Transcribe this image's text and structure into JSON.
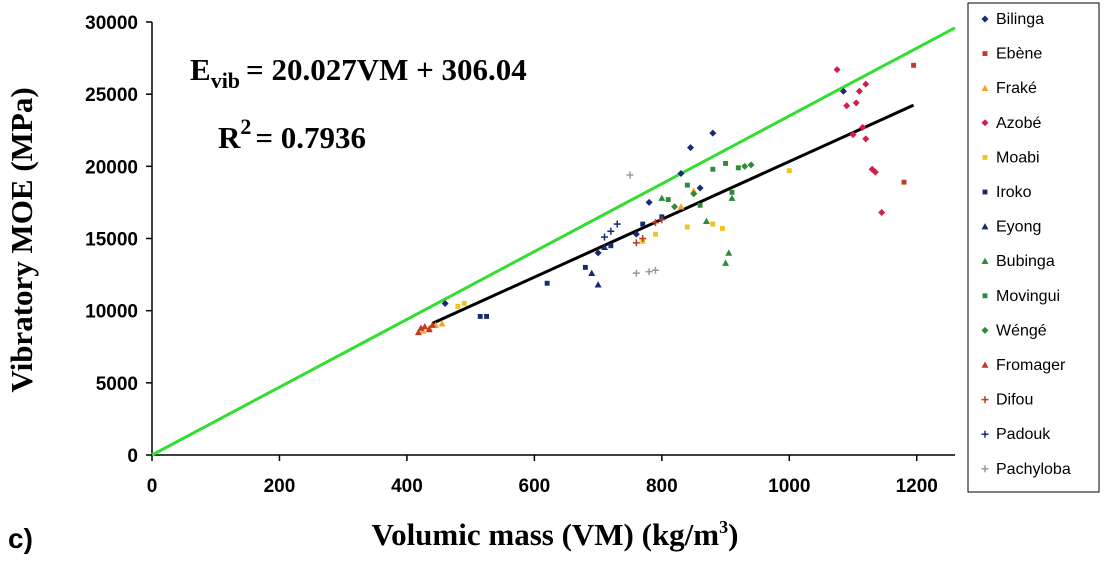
{
  "panel_label": "c)",
  "equation": {
    "lhs": "E",
    "lhs_sub": "vib",
    "rhs": "= 20.027VM + 306.04"
  },
  "r_squared": {
    "label": "R",
    "sup": "2",
    "value": "= 0.7936"
  },
  "colors": {
    "green_line": "#33dd33",
    "black_line": "#000000"
  },
  "chart_data": {
    "type": "scatter",
    "title": "",
    "xlabel": "Volumic mass (VM) (kg/m",
    "xlabel_sup": "3",
    "xlabel_end": ")",
    "ylabel": "Vibratory MOE (MPa)",
    "xlim": [
      0,
      1260
    ],
    "ylim": [
      0,
      30000
    ],
    "xticks": [
      "0",
      "200",
      "400",
      "600",
      "800",
      "1000",
      "1200"
    ],
    "yticks": [
      "0",
      "5000",
      "10000",
      "15000",
      "20000",
      "25000",
      "30000"
    ],
    "grid": false,
    "legend_position": "right",
    "lines": [
      {
        "kind": "reference",
        "color": "#33dd33",
        "points": [
          [
            0,
            0
          ],
          [
            1260,
            29600
          ]
        ]
      },
      {
        "kind": "regression",
        "color": "#000000",
        "slope": 20.027,
        "intercept": 306.04,
        "x_range": [
          440,
          1195
        ]
      }
    ],
    "series": [
      {
        "name": "Bilinga",
        "marker": "diamond",
        "color": "#1a2a6e",
        "points": [
          [
            460,
            10500
          ],
          [
            700,
            14000
          ],
          [
            760,
            15300
          ],
          [
            780,
            17500
          ],
          [
            830,
            19500
          ],
          [
            845,
            21300
          ],
          [
            880,
            22300
          ],
          [
            860,
            18500
          ],
          [
            1085,
            25200
          ]
        ]
      },
      {
        "name": "Ebène",
        "marker": "square",
        "color": "#c0392b",
        "points": [
          [
            1195,
            27000
          ],
          [
            1180,
            18900
          ]
        ]
      },
      {
        "name": "Fraké",
        "marker": "triangle",
        "color": "#f5a623",
        "points": [
          [
            425,
            8600
          ],
          [
            435,
            8800
          ],
          [
            445,
            9000
          ],
          [
            455,
            9100
          ],
          [
            830,
            17200
          ],
          [
            850,
            18300
          ]
        ]
      },
      {
        "name": "Azobé",
        "marker": "diamond",
        "color": "#d0204a",
        "points": [
          [
            1075,
            26700
          ],
          [
            1090,
            24200
          ],
          [
            1105,
            24400
          ],
          [
            1110,
            25200
          ],
          [
            1120,
            25700
          ],
          [
            1115,
            22700
          ],
          [
            1120,
            21900
          ],
          [
            1130,
            19800
          ],
          [
            1135,
            19600
          ],
          [
            1145,
            16800
          ],
          [
            1100,
            22200
          ]
        ]
      },
      {
        "name": "Moabi",
        "marker": "square",
        "color": "#f0c419",
        "points": [
          [
            480,
            10300
          ],
          [
            490,
            10500
          ],
          [
            770,
            14800
          ],
          [
            790,
            15300
          ],
          [
            880,
            16000
          ],
          [
            895,
            15700
          ],
          [
            1000,
            19700
          ],
          [
            840,
            15800
          ]
        ]
      },
      {
        "name": "Iroko",
        "marker": "square",
        "color": "#1a2a6e",
        "points": [
          [
            515,
            9600
          ],
          [
            525,
            9600
          ],
          [
            620,
            11900
          ],
          [
            680,
            13000
          ],
          [
            720,
            14500
          ],
          [
            770,
            16000
          ],
          [
            800,
            16500
          ]
        ]
      },
      {
        "name": "Eyong",
        "marker": "triangle",
        "color": "#1a2a6e",
        "points": [
          [
            690,
            12600
          ],
          [
            700,
            11800
          ],
          [
            710,
            14400
          ]
        ]
      },
      {
        "name": "Bubinga",
        "marker": "triangle",
        "color": "#2e8b3a",
        "points": [
          [
            900,
            13300
          ],
          [
            905,
            14000
          ],
          [
            910,
            17800
          ],
          [
            800,
            17800
          ],
          [
            870,
            16200
          ]
        ]
      },
      {
        "name": "Movingui",
        "marker": "square",
        "color": "#2e8b3a",
        "points": [
          [
            810,
            17700
          ],
          [
            840,
            18700
          ],
          [
            860,
            17300
          ],
          [
            880,
            19800
          ],
          [
            900,
            20200
          ],
          [
            910,
            18200
          ],
          [
            920,
            19900
          ]
        ]
      },
      {
        "name": "Wéngé",
        "marker": "diamond",
        "color": "#2e8b3a",
        "points": [
          [
            820,
            17200
          ],
          [
            850,
            18100
          ],
          [
            930,
            20000
          ],
          [
            940,
            20100
          ]
        ]
      },
      {
        "name": "Fromager",
        "marker": "triangle",
        "color": "#c0392b",
        "points": [
          [
            418,
            8500
          ],
          [
            422,
            8800
          ],
          [
            428,
            8900
          ],
          [
            435,
            8700
          ],
          [
            440,
            9000
          ]
        ]
      },
      {
        "name": "Difou",
        "marker": "cross",
        "color": "#c0392b",
        "points": [
          [
            760,
            14700
          ],
          [
            770,
            15000
          ],
          [
            790,
            16100
          ],
          [
            800,
            16300
          ]
        ]
      },
      {
        "name": "Padouk",
        "marker": "cross",
        "color": "#1a2a6e",
        "points": [
          [
            710,
            15100
          ],
          [
            720,
            15500
          ],
          [
            730,
            16000
          ]
        ]
      },
      {
        "name": "Pachyloba",
        "marker": "cross",
        "color": "#999999",
        "points": [
          [
            750,
            19400
          ],
          [
            760,
            12600
          ],
          [
            780,
            12700
          ],
          [
            790,
            12800
          ]
        ]
      }
    ]
  }
}
